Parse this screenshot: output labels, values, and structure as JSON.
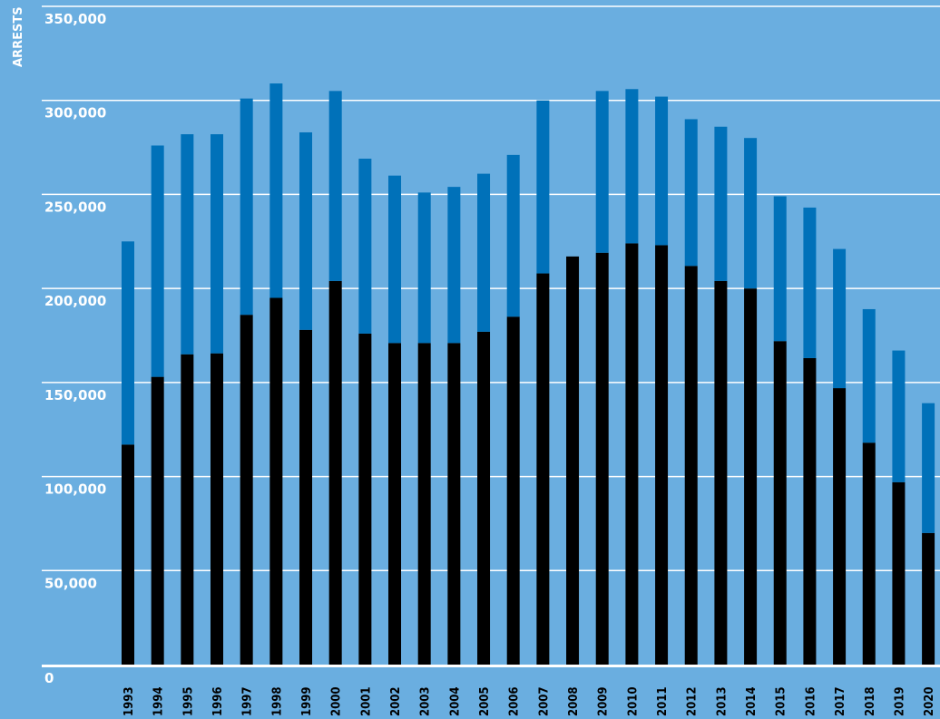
{
  "chart_data": {
    "type": "bar",
    "stacked": true,
    "ylabel": "ARRESTS",
    "ylim": [
      0,
      350000
    ],
    "yticks": [
      0,
      50000,
      100000,
      150000,
      200000,
      250000,
      300000,
      350000
    ],
    "ytick_labels": [
      "0",
      "50,000",
      "100,000",
      "150,000",
      "200,000",
      "250,000",
      "300,000",
      "350,000"
    ],
    "grid": true,
    "categories": [
      "1993",
      "1994",
      "1995",
      "1996",
      "1997",
      "1998",
      "1999",
      "2000",
      "2001",
      "2002",
      "2003",
      "2004",
      "2005",
      "2006",
      "2007",
      "2008",
      "2009",
      "2010",
      "2011",
      "2012",
      "2013",
      "2014",
      "2015",
      "2016",
      "2017",
      "2018",
      "2019",
      "2020"
    ],
    "series": [
      {
        "color": "#000000",
        "values": [
          117000,
          153000,
          165000,
          165500,
          186000,
          195000,
          178000,
          204000,
          176000,
          171000,
          171000,
          171000,
          177000,
          185000,
          208000,
          217000,
          219000,
          224000,
          223000,
          212000,
          204000,
          200000,
          172000,
          163000,
          147000,
          118000,
          97000,
          70000
        ]
      },
      {
        "color": "#0071b9",
        "values": [
          108000,
          123000,
          117000,
          116500,
          115000,
          114000,
          105000,
          101000,
          93000,
          89000,
          80000,
          83000,
          84000,
          86000,
          92000,
          0,
          86000,
          82000,
          79000,
          78000,
          82000,
          80000,
          77000,
          80000,
          74000,
          71000,
          70000,
          69000
        ]
      }
    ]
  }
}
